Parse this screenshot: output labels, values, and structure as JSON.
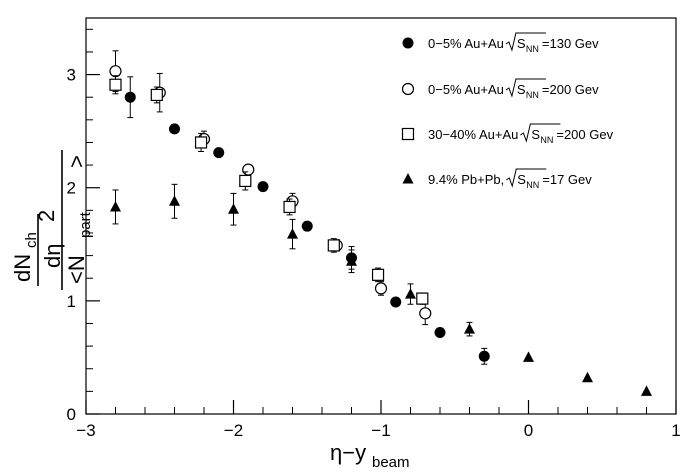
{
  "chart_data": {
    "type": "scatter",
    "title": "",
    "xlabel": {
      "main": "η−y",
      "sub": "beam"
    },
    "ylabel": {
      "left_numerator": "dN",
      "left_numerator_sub": "ch",
      "left_denominator": "dη",
      "right_numerator": "2",
      "right_denominator": "<N",
      "right_denominator_sub": "part",
      "right_denominator_close": ">"
    },
    "xlim": [
      -3,
      1
    ],
    "ylim": [
      0,
      3.5
    ],
    "x_ticks": [
      {
        "value": -3,
        "label": "−3"
      },
      {
        "value": -2,
        "label": "−2"
      },
      {
        "value": -1,
        "label": "−1"
      },
      {
        "value": 0,
        "label": "0"
      },
      {
        "value": 1,
        "label": "1"
      }
    ],
    "y_ticks": [
      {
        "value": 0,
        "label": "0"
      },
      {
        "value": 1,
        "label": "1"
      },
      {
        "value": 2,
        "label": "2"
      },
      {
        "value": 3,
        "label": "3"
      }
    ],
    "grid": false,
    "legend_position": "top-right",
    "series": [
      {
        "name_prefix": "0−5% Au+Au",
        "name_sqrt_label": "S",
        "name_sqrt_sub": "NN",
        "name_suffix": "=130 Gev",
        "marker": "filled-circle",
        "points": [
          {
            "x": -2.7,
            "y": 2.8,
            "err": 0.18
          },
          {
            "x": -2.4,
            "y": 2.52,
            "err": 0.0
          },
          {
            "x": -2.1,
            "y": 2.31,
            "err": 0.0
          },
          {
            "x": -1.8,
            "y": 2.01,
            "err": 0.0
          },
          {
            "x": -1.5,
            "y": 1.66,
            "err": 0.0
          },
          {
            "x": -1.2,
            "y": 1.38,
            "err": 0.1
          },
          {
            "x": -0.9,
            "y": 0.99,
            "err": 0.0
          },
          {
            "x": -0.6,
            "y": 0.72,
            "err": 0.0
          },
          {
            "x": -0.3,
            "y": 0.51,
            "err": 0.07
          }
        ]
      },
      {
        "name_prefix": "0−5% Au+Au",
        "name_sqrt_label": "S",
        "name_sqrt_sub": "NN",
        "name_suffix": "=200 Gev",
        "marker": "open-circle",
        "points": [
          {
            "x": -2.8,
            "y": 3.03,
            "err": 0.18
          },
          {
            "x": -2.5,
            "y": 2.84,
            "err": 0.17
          },
          {
            "x": -2.2,
            "y": 2.43,
            "err": 0.07
          },
          {
            "x": -1.9,
            "y": 2.16,
            "err": 0.0
          },
          {
            "x": -1.6,
            "y": 1.88,
            "err": 0.07
          },
          {
            "x": -1.3,
            "y": 1.49,
            "err": 0.05
          },
          {
            "x": -1.0,
            "y": 1.11,
            "err": 0.06
          },
          {
            "x": -0.7,
            "y": 0.89,
            "err": 0.1
          }
        ]
      },
      {
        "name_prefix": "30−40% Au+Au",
        "name_sqrt_label": "S",
        "name_sqrt_sub": "NN",
        "name_suffix": "=200 Gev",
        "marker": "open-square",
        "points": [
          {
            "x": -2.8,
            "y": 2.91,
            "err": 0.08
          },
          {
            "x": -2.52,
            "y": 2.82,
            "err": 0.07
          },
          {
            "x": -2.22,
            "y": 2.4,
            "err": 0.08
          },
          {
            "x": -1.92,
            "y": 2.06,
            "err": 0.08
          },
          {
            "x": -1.62,
            "y": 1.83,
            "err": 0.07
          },
          {
            "x": -1.32,
            "y": 1.49,
            "err": 0.06
          },
          {
            "x": -1.02,
            "y": 1.23,
            "err": 0.06
          },
          {
            "x": -0.72,
            "y": 1.02,
            "err": 0.05
          }
        ]
      },
      {
        "name_prefix": "9.4% Pb+Pb,",
        "name_sqrt_label": "S",
        "name_sqrt_sub": "NN",
        "name_suffix": "=17 Gev",
        "marker": "filled-triangle",
        "points": [
          {
            "x": -2.8,
            "y": 1.83,
            "err": 0.15
          },
          {
            "x": -2.4,
            "y": 1.88,
            "err": 0.15
          },
          {
            "x": -2.0,
            "y": 1.81,
            "err": 0.14
          },
          {
            "x": -1.6,
            "y": 1.59,
            "err": 0.13
          },
          {
            "x": -1.2,
            "y": 1.35,
            "err": 0.1
          },
          {
            "x": -0.8,
            "y": 1.06,
            "err": 0.09
          },
          {
            "x": -0.4,
            "y": 0.75,
            "err": 0.06
          },
          {
            "x": 0.0,
            "y": 0.5,
            "err": 0.0
          },
          {
            "x": 0.4,
            "y": 0.32,
            "err": 0.0
          },
          {
            "x": 0.8,
            "y": 0.2,
            "err": 0.0
          }
        ]
      }
    ]
  }
}
